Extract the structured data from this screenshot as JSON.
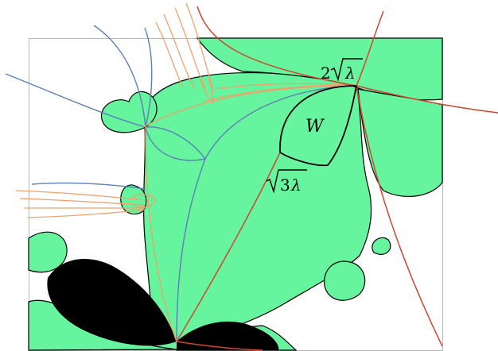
{
  "labels": {
    "region_w": "W",
    "point_top_coef": "2",
    "point_top_var": "λ",
    "point_mid_coef": "3",
    "point_mid_var": "λ"
  },
  "colors": {
    "fill": "#66f59e",
    "julia_core": "#000000",
    "frame": "#b8b8b8",
    "curve_blue": "#5b7fb5",
    "curve_orange": "#f2a06a",
    "curve_red": "#d2452e",
    "curve_black": "#000000"
  }
}
